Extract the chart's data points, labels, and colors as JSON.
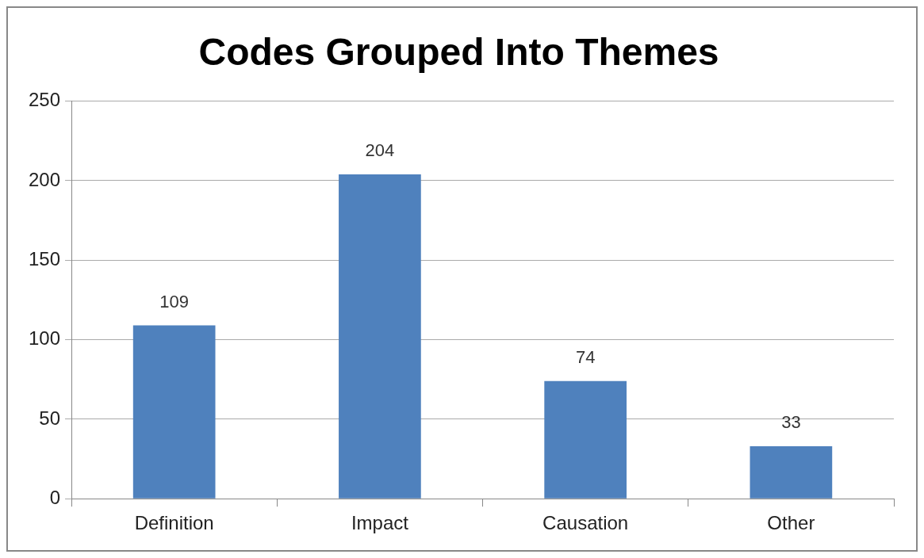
{
  "chart_data": {
    "type": "bar",
    "title": "Codes Grouped Into Themes",
    "categories": [
      "Definition",
      "Impact",
      "Causation",
      "Other"
    ],
    "values": [
      109,
      204,
      74,
      33
    ],
    "color": "#4f81bd",
    "ylim": [
      0,
      250
    ],
    "yticks": [
      0,
      50,
      100,
      150,
      200,
      250
    ],
    "grid": "y",
    "legend": false,
    "data_labels": true
  }
}
